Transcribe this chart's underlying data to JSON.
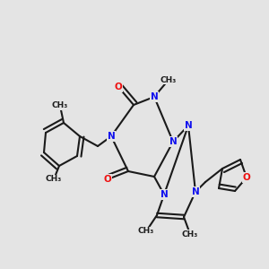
{
  "bg": "#e4e4e4",
  "bond_color": "#1a1a1a",
  "N_color": "#1010ee",
  "O_color": "#ee1010",
  "lw": 1.5,
  "dbo": 0.013,
  "fs": 7.5,
  "fs_me": 6.5
}
